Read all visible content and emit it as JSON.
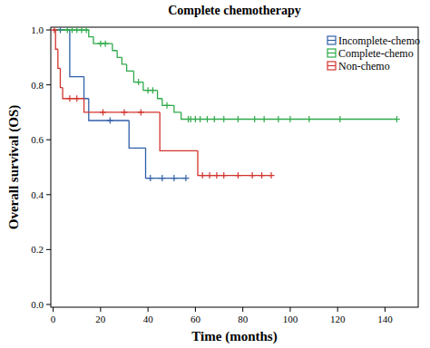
{
  "chart_data": {
    "type": "kaplan-meier",
    "title": "Complete chemotherapy",
    "x_label": "Time (months)",
    "y_label": "Overall survival (OS)",
    "xlim": [
      -1,
      154
    ],
    "ylim": [
      -0.01,
      1.01
    ],
    "xticks": [
      0,
      20,
      40,
      60,
      80,
      100,
      120,
      140
    ],
    "yticks": [
      {
        "value": 0,
        "label": "0.0"
      },
      0.2,
      0.4,
      0.6,
      0.8,
      {
        "value": 1,
        "label": "1.0"
      }
    ],
    "legend": "top-right",
    "grid": false,
    "series": [
      {
        "name": "Incomplete-chemo",
        "color": "#2f5fa8",
        "x": [
          0,
          7,
          13,
          15,
          32,
          39
        ],
        "values": [
          1.0,
          0.83,
          0.75,
          0.67,
          0.57,
          0.46
        ],
        "censored_x": [
          3,
          24,
          41,
          46,
          51,
          56
        ],
        "censored_values": [
          1.0,
          0.67,
          0.46,
          0.46,
          0.46,
          0.46
        ]
      },
      {
        "name": "Complete-chemo",
        "color": "#2eaa4a",
        "x": [
          0,
          15,
          17,
          25,
          27,
          29,
          31,
          34,
          38,
          44,
          46,
          51,
          54
        ],
        "values": [
          1.0,
          0.975,
          0.95,
          0.925,
          0.9,
          0.875,
          0.85,
          0.81,
          0.78,
          0.75,
          0.725,
          0.7,
          0.675
        ],
        "censored_x": [
          6,
          8,
          10,
          12,
          14,
          20,
          22,
          36,
          40,
          42,
          48,
          57,
          58,
          60,
          62,
          65,
          68,
          72,
          78,
          85,
          89,
          95,
          100,
          108,
          121,
          145
        ],
        "censored_values": [
          1.0,
          1.0,
          1.0,
          1.0,
          1.0,
          0.95,
          0.95,
          0.81,
          0.78,
          0.78,
          0.725,
          0.675,
          0.675,
          0.675,
          0.675,
          0.675,
          0.675,
          0.675,
          0.675,
          0.675,
          0.675,
          0.675,
          0.675,
          0.675,
          0.675,
          0.675
        ]
      },
      {
        "name": "Non-chemo",
        "color": "#d2342e",
        "x": [
          0,
          1,
          2,
          3,
          4,
          13,
          45,
          61
        ],
        "values": [
          1.0,
          0.93,
          0.86,
          0.79,
          0.75,
          0.7,
          0.56,
          0.47
        ],
        "censored_x": [
          0.5,
          7,
          10,
          21,
          30,
          37,
          63,
          66,
          69,
          72,
          78,
          84,
          88,
          92
        ],
        "censored_values": [
          1.0,
          0.75,
          0.75,
          0.7,
          0.7,
          0.7,
          0.47,
          0.47,
          0.47,
          0.47,
          0.47,
          0.47,
          0.47,
          0.47
        ]
      }
    ]
  }
}
